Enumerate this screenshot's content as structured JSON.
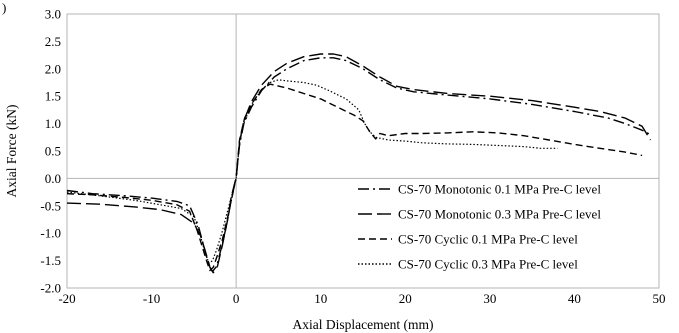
{
  "chart_data": {
    "type": "line",
    "partial_label": ")",
    "xlabel": "Axial Displacement (mm)",
    "ylabel": "Axial Force (kN)",
    "xlim": [
      -20,
      50
    ],
    "ylim": [
      -2.0,
      3.0
    ],
    "x_ticks": [
      "-20",
      "-10",
      "0",
      "10",
      "20",
      "30",
      "40",
      "50"
    ],
    "y_ticks": [
      "-2.0",
      "-1.5",
      "-1.0",
      "-0.5",
      "0.0",
      "0.5",
      "1.0",
      "1.5",
      "2.0",
      "2.5",
      "3.0"
    ],
    "grid": false,
    "legend_position": "lower-right",
    "series": [
      {
        "name": "CS-70 Monotonic 0.1 MPa Pre-C level",
        "style": "dashdot",
        "color": "#000000",
        "points": [
          [
            -20,
            -0.22
          ],
          [
            -17,
            -0.28
          ],
          [
            -13,
            -0.32
          ],
          [
            -10,
            -0.36
          ],
          [
            -7,
            -0.42
          ],
          [
            -5.5,
            -0.5
          ],
          [
            -4.5,
            -0.85
          ],
          [
            -3.8,
            -1.25
          ],
          [
            -3.2,
            -1.6
          ],
          [
            -2.8,
            -1.7
          ],
          [
            -2.3,
            -1.6
          ],
          [
            -1.8,
            -1.3
          ],
          [
            -1.2,
            -0.9
          ],
          [
            -0.7,
            -0.5
          ],
          [
            -0.3,
            -0.2
          ],
          [
            0,
            0
          ],
          [
            0.4,
            0.6
          ],
          [
            0.9,
            1.0
          ],
          [
            1.8,
            1.3
          ],
          [
            3,
            1.6
          ],
          [
            4.5,
            1.85
          ],
          [
            6,
            2.0
          ],
          [
            8,
            2.15
          ],
          [
            10,
            2.2
          ],
          [
            11.5,
            2.2
          ],
          [
            13,
            2.15
          ],
          [
            15,
            2.0
          ],
          [
            17,
            1.8
          ],
          [
            19,
            1.65
          ],
          [
            21,
            1.58
          ],
          [
            25,
            1.52
          ],
          [
            30,
            1.45
          ],
          [
            35,
            1.35
          ],
          [
            40,
            1.22
          ],
          [
            44,
            1.1
          ],
          [
            46,
            1.0
          ],
          [
            48,
            0.88
          ],
          [
            49,
            0.8
          ]
        ]
      },
      {
        "name": "CS-70 Monotonic 0.3 MPa Pre-C level",
        "style": "longdash",
        "color": "#000000",
        "points": [
          [
            -20,
            -0.45
          ],
          [
            -16,
            -0.47
          ],
          [
            -12,
            -0.52
          ],
          [
            -9,
            -0.57
          ],
          [
            -6.5,
            -0.66
          ],
          [
            -5,
            -0.82
          ],
          [
            -4.2,
            -1.05
          ],
          [
            -3.6,
            -1.35
          ],
          [
            -3.1,
            -1.62
          ],
          [
            -2.7,
            -1.72
          ],
          [
            -2.2,
            -1.6
          ],
          [
            -1.6,
            -1.2
          ],
          [
            -1.0,
            -0.75
          ],
          [
            -0.6,
            -0.35
          ],
          [
            -0.2,
            -0.1
          ],
          [
            0,
            0
          ],
          [
            0.4,
            0.65
          ],
          [
            0.9,
            1.05
          ],
          [
            1.8,
            1.4
          ],
          [
            3,
            1.7
          ],
          [
            4.5,
            1.95
          ],
          [
            6,
            2.1
          ],
          [
            8,
            2.22
          ],
          [
            10,
            2.27
          ],
          [
            11.5,
            2.27
          ],
          [
            13,
            2.22
          ],
          [
            15,
            2.05
          ],
          [
            17,
            1.85
          ],
          [
            19,
            1.68
          ],
          [
            21,
            1.62
          ],
          [
            25,
            1.55
          ],
          [
            30,
            1.5
          ],
          [
            35,
            1.42
          ],
          [
            40,
            1.3
          ],
          [
            43,
            1.22
          ],
          [
            46,
            1.1
          ],
          [
            48,
            0.95
          ],
          [
            49,
            0.7
          ]
        ]
      },
      {
        "name": "CS-70 Cyclic 0.1 MPa Pre-C level",
        "style": "dashdash",
        "color": "#000000",
        "points": [
          [
            -20,
            -0.28
          ],
          [
            -17,
            -0.3
          ],
          [
            -13,
            -0.35
          ],
          [
            -10,
            -0.4
          ],
          [
            -7,
            -0.48
          ],
          [
            -5.5,
            -0.6
          ],
          [
            -4.6,
            -0.95
          ],
          [
            -4.0,
            -1.25
          ],
          [
            -3.5,
            -1.5
          ],
          [
            -3.1,
            -1.68
          ],
          [
            -2.7,
            -1.62
          ],
          [
            -2.2,
            -1.4
          ],
          [
            -1.6,
            -1.1
          ],
          [
            -1.0,
            -0.7
          ],
          [
            -0.5,
            -0.35
          ],
          [
            -0.15,
            -0.08
          ],
          [
            0,
            0
          ],
          [
            0.4,
            0.7
          ],
          [
            1,
            1.1
          ],
          [
            2,
            1.4
          ],
          [
            3,
            1.62
          ],
          [
            4,
            1.72
          ],
          [
            6,
            1.65
          ],
          [
            8,
            1.55
          ],
          [
            10,
            1.45
          ],
          [
            12,
            1.3
          ],
          [
            14,
            1.15
          ],
          [
            15,
            1.05
          ],
          [
            15.8,
            0.85
          ],
          [
            16.5,
            0.72
          ],
          [
            17,
            0.82
          ],
          [
            18,
            0.78
          ],
          [
            19,
            0.8
          ],
          [
            20,
            0.82
          ],
          [
            22,
            0.82
          ],
          [
            25,
            0.83
          ],
          [
            28,
            0.85
          ],
          [
            31,
            0.83
          ],
          [
            34,
            0.78
          ],
          [
            37,
            0.7
          ],
          [
            40,
            0.62
          ],
          [
            43,
            0.55
          ],
          [
            46,
            0.48
          ],
          [
            48,
            0.42
          ]
        ]
      },
      {
        "name": "CS-70 Cyclic 0.3 MPa Pre-C level",
        "style": "dotted",
        "color": "#000000",
        "points": [
          [
            -20,
            -0.25
          ],
          [
            -16,
            -0.32
          ],
          [
            -12,
            -0.4
          ],
          [
            -9,
            -0.48
          ],
          [
            -6.5,
            -0.55
          ],
          [
            -5,
            -0.7
          ],
          [
            -4.3,
            -1.0
          ],
          [
            -3.7,
            -1.35
          ],
          [
            -3.2,
            -1.55
          ],
          [
            -2.8,
            -1.5
          ],
          [
            -2.3,
            -1.3
          ],
          [
            -1.7,
            -1.0
          ],
          [
            -1.1,
            -0.65
          ],
          [
            -0.5,
            -0.3
          ],
          [
            0,
            0
          ],
          [
            0.4,
            0.65
          ],
          [
            1,
            1.05
          ],
          [
            2,
            1.4
          ],
          [
            3,
            1.62
          ],
          [
            4,
            1.75
          ],
          [
            5,
            1.8
          ],
          [
            6,
            1.78
          ],
          [
            8,
            1.75
          ],
          [
            9.5,
            1.7
          ],
          [
            11,
            1.6
          ],
          [
            13,
            1.45
          ],
          [
            14.5,
            1.25
          ],
          [
            15.2,
            1.0
          ],
          [
            15.8,
            0.85
          ],
          [
            16.5,
            0.75
          ],
          [
            18,
            0.7
          ],
          [
            20,
            0.68
          ],
          [
            22,
            0.65
          ],
          [
            25,
            0.63
          ],
          [
            28,
            0.62
          ],
          [
            31,
            0.6
          ],
          [
            34,
            0.58
          ],
          [
            36,
            0.55
          ],
          [
            38,
            0.55
          ]
        ]
      }
    ]
  }
}
